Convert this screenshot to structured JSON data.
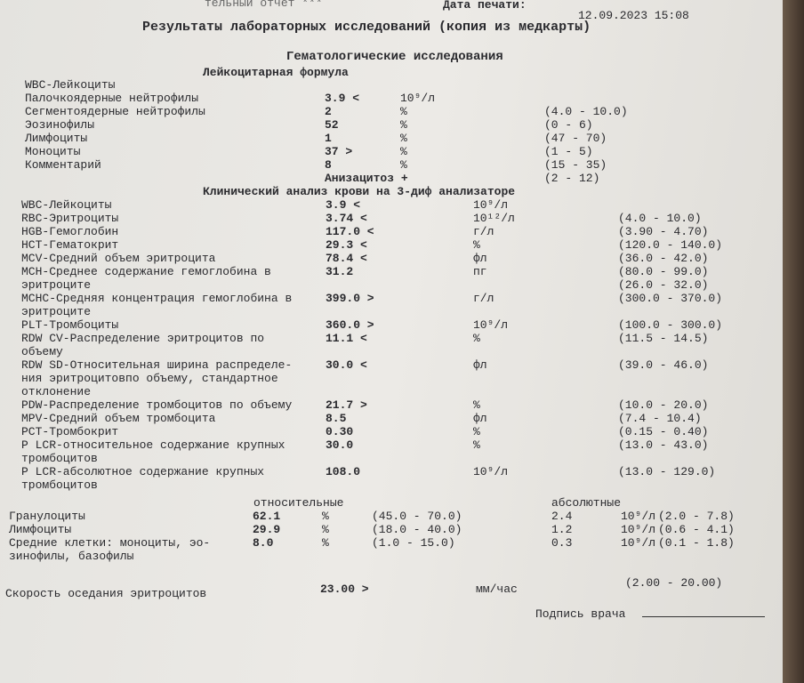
{
  "header": {
    "report": "тельный отчет ***",
    "print_date_label": "Дата печати:",
    "print_date": "12.09.2023 15:08"
  },
  "title": "Результаты лабораторных исследований (копия из медкарты)",
  "subtitle": "Гематологические исследования",
  "leukocyte_formula": {
    "heading": "Лейкоцитарная формула",
    "rows": [
      {
        "name": "WBC-Лейкоциты"
      },
      {
        "name": "Палочкоядерные нейтрофилы",
        "value": "3.9 <",
        "unit": "10⁹/л"
      },
      {
        "name": "Сегментоядерные нейтрофилы",
        "value": "2",
        "unit": "%",
        "range": "(4.0 - 10.0)"
      },
      {
        "name": "Эозинофилы",
        "value": "52",
        "unit": "%",
        "range": "(0 - 6)"
      },
      {
        "name": "Лимфоциты",
        "value": "1",
        "unit": "%",
        "range": "(47 - 70)"
      },
      {
        "name": "Моноциты",
        "value": "37 >",
        "unit": "%",
        "range": "(1 - 5)"
      },
      {
        "name": "Комментарий",
        "value": "8",
        "unit": "%",
        "range": "(15 - 35)"
      },
      {
        "value": "Анизацитоз +",
        "range": "(2 - 12)"
      }
    ]
  },
  "clinical_analysis": {
    "heading": "Клинический анализ крови на 3-диф анализаторе",
    "rows": [
      {
        "name": "WBC-Лейкоциты",
        "value": "3.9 <",
        "unit": "10⁹/л"
      },
      {
        "name": "RBC-Эритроциты",
        "value": "3.74 <",
        "unit": "10¹²/л",
        "range": "(4.0 - 10.0)"
      },
      {
        "name": "HGB-Гемоглобин",
        "value": "117.0 <",
        "unit": "г/л",
        "range": "(3.90 - 4.70)"
      },
      {
        "name": "HCT-Гематокрит",
        "value": "29.3 <",
        "unit": "%",
        "range": "(120.0 - 140.0)"
      },
      {
        "name": "MCV-Средний объем эритроцита",
        "value": "78.4 <",
        "unit": "фл",
        "range": "(36.0 - 42.0)"
      },
      {
        "name": "MCH-Среднее содержание гемоглобина в\nэритроците",
        "value": "31.2",
        "unit": "пг",
        "range": "(80.0 - 99.0)\n(26.0 - 32.0)"
      },
      {
        "name": "MCHC-Средняя концентрация гемоглобина в\nэритроците",
        "value": "399.0 >",
        "unit": "г/л",
        "range": "(300.0 - 370.0)"
      },
      {
        "name": "PLT-Тромбоциты",
        "value": "360.0 >",
        "unit": "10⁹/л",
        "range": "(100.0 - 300.0)"
      },
      {
        "name": "RDW CV-Распределение эритроцитов по\nобъему",
        "value": "11.1 <",
        "unit": "%",
        "range": "(11.5 - 14.5)"
      },
      {
        "name": "RDW SD-Относительная ширина распределе-\nния эритроцитовпо объему, стандартное\nотклонение",
        "value": "30.0 <",
        "unit": "фл",
        "range": "(39.0 - 46.0)"
      },
      {
        "name": "PDW-Распределение тромбоцитов по объему",
        "value": "21.7 >",
        "unit": "%",
        "range": "(10.0 - 20.0)"
      },
      {
        "name": "MPV-Средний объем тромбоцита",
        "value": "8.5",
        "unit": "фл",
        "range": "(7.4 - 10.4)"
      },
      {
        "name": "PCT-Тромбокрит",
        "value": "0.30",
        "unit": "%",
        "range": "(0.15 - 0.40)"
      },
      {
        "name": "P LCR-относительное содержание крупных\nтромбоцитов",
        "value": "30.0",
        "unit": "%",
        "range": "(13.0 - 43.0)"
      },
      {
        "name": "P LCR-абсолютное содержание крупных\nтромбоцитов",
        "value": "108.0",
        "unit": "10⁹/л",
        "range": "(13.0 - 129.0)"
      }
    ]
  },
  "differential": {
    "relative_heading": "относительные",
    "absolute_heading": "абсолютные",
    "rows": [
      {
        "name": "Гранулоциты",
        "value": "62.1",
        "unit": "%",
        "range": "(45.0 - 70.0)",
        "abs_value": "2.4",
        "abs_unit": "10⁹/л",
        "abs_range": "(2.0 - 7.8)"
      },
      {
        "name": "Лимфоциты",
        "value": "29.9",
        "unit": "%",
        "range": "(18.0 - 40.0)",
        "abs_value": "1.2",
        "abs_unit": "10⁹/л",
        "abs_range": "(0.6 - 4.1)"
      },
      {
        "name": "Средние клетки: моноциты, эо-\nзинофилы, базофилы",
        "value": "8.0",
        "unit": "%",
        "range": "(1.0 - 15.0)",
        "abs_value": "0.3",
        "abs_unit": "10⁹/л",
        "abs_range": "(0.1 - 1.8)"
      }
    ]
  },
  "esr": {
    "name": "Скорость оседания эритроцитов",
    "value": "23.00 >",
    "unit": "мм/час",
    "range": "(2.00 - 20.00)"
  },
  "signature": "Подпись врача"
}
